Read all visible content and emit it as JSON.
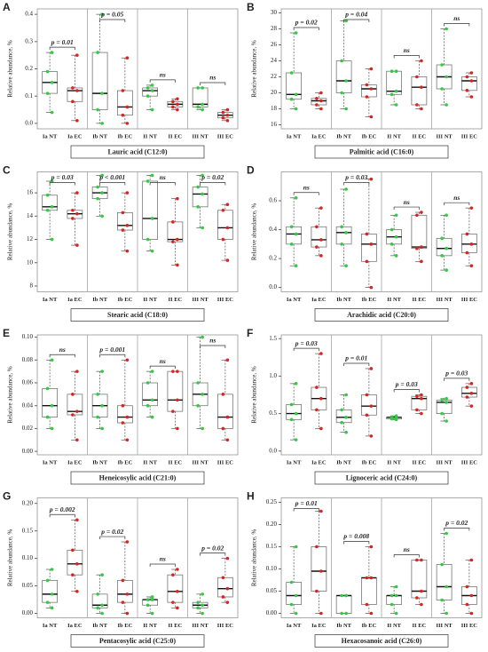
{
  "chart_data": [
    {
      "type": "box",
      "letter": "A",
      "title": "Lauric acid (C12:0)",
      "y_label": "Relative abundance, %",
      "categories": [
        "Ia NT",
        "Ia EC",
        "Ib NT",
        "Ib EC",
        "II NT",
        "II EC",
        "III NT",
        "III EC"
      ],
      "colors": [
        "#2ecc40",
        "#e0201e"
      ],
      "boxes": [
        {
          "min": 0.04,
          "q1": 0.11,
          "median": 0.15,
          "q3": 0.19,
          "max": 0.26
        },
        {
          "min": 0.01,
          "q1": 0.08,
          "median": 0.12,
          "q3": 0.13,
          "max": 0.25
        },
        {
          "min": 0.0,
          "q1": 0.05,
          "median": 0.11,
          "q3": 0.26,
          "max": 0.4
        },
        {
          "min": 0.0,
          "q1": 0.03,
          "median": 0.06,
          "q3": 0.12,
          "max": 0.24
        },
        {
          "min": 0.05,
          "q1": 0.1,
          "median": 0.12,
          "q3": 0.13,
          "max": 0.14
        },
        {
          "min": 0.05,
          "q1": 0.06,
          "median": 0.07,
          "q3": 0.08,
          "max": 0.09
        },
        {
          "min": 0.05,
          "q1": 0.06,
          "median": 0.07,
          "q3": 0.13,
          "max": 0.13
        },
        {
          "min": 0.01,
          "q1": 0.02,
          "median": 0.03,
          "q3": 0.04,
          "max": 0.05
        }
      ],
      "annotations": [
        "p = 0.01",
        "p = 0.05",
        "ns",
        "ns"
      ],
      "ylim": [
        -0.02,
        0.42
      ],
      "yticks": [
        {
          "value": 0,
          "label": "0.0"
        },
        0.1,
        0.2,
        0.3,
        0.4
      ]
    },
    {
      "type": "box",
      "letter": "B",
      "title": "Palmitic acid  (C16:0)",
      "y_label": "Relative abundance, %",
      "categories": [
        "Ia NT",
        "Ia EC",
        "Ib NT",
        "Ib EC",
        "II NT",
        "II EC",
        "III NT",
        "III EC"
      ],
      "colors": [
        "#2ecc40",
        "#e0201e"
      ],
      "boxes": [
        {
          "min": 18,
          "q1": 19.2,
          "median": 19.8,
          "q3": 22.5,
          "max": 27.5
        },
        {
          "min": 18,
          "q1": 18.5,
          "median": 19,
          "q3": 19.3,
          "max": 20
        },
        {
          "min": 18,
          "q1": 20,
          "median": 21.5,
          "q3": 24,
          "max": 29
        },
        {
          "min": 17,
          "q1": 19.5,
          "median": 20.5,
          "q3": 21,
          "max": 23
        },
        {
          "min": 18.5,
          "q1": 19.8,
          "median": 20.2,
          "q3": 22.7,
          "max": 22.7
        },
        {
          "min": 18,
          "q1": 18.5,
          "median": 20.7,
          "q3": 22,
          "max": 24
        },
        {
          "min": 18.5,
          "q1": 20.5,
          "median": 22,
          "q3": 23.5,
          "max": 28
        },
        {
          "min": 19.5,
          "q1": 20.3,
          "median": 21.5,
          "q3": 22,
          "max": 22.5
        }
      ],
      "annotations": [
        "p = 0.02",
        "p = 0.04",
        "ns",
        "ns"
      ],
      "ylim": [
        15.5,
        30.5
      ],
      "yticks": [
        16,
        18,
        20,
        22,
        24,
        26,
        28,
        30
      ]
    },
    {
      "type": "box",
      "letter": "C",
      "title": "Stearic acid (C18:0)",
      "y_label": "Relative abundance, %",
      "categories": [
        "Ia NT",
        "Ia EC",
        "Ib NT",
        "Ib EC",
        "II NT",
        "II EC",
        "III NT",
        "III EC"
      ],
      "colors": [
        "#2ecc40",
        "#e0201e"
      ],
      "boxes": [
        {
          "min": 12,
          "q1": 14.5,
          "median": 14.8,
          "q3": 15.8,
          "max": 17
        },
        {
          "min": 11.5,
          "q1": 13.8,
          "median": 14.2,
          "q3": 14.5,
          "max": 16
        },
        {
          "min": 14,
          "q1": 15.5,
          "median": 16,
          "q3": 16.5,
          "max": 17.5
        },
        {
          "min": 11,
          "q1": 12.8,
          "median": 13.2,
          "q3": 14.3,
          "max": 16
        },
        {
          "min": 11,
          "q1": 12,
          "median": 13.8,
          "q3": 17,
          "max": 17.5
        },
        {
          "min": 9.8,
          "q1": 11.8,
          "median": 12,
          "q3": 13.5,
          "max": 15.5
        },
        {
          "min": 13,
          "q1": 14.8,
          "median": 15.9,
          "q3": 16.5,
          "max": 17.5
        },
        {
          "min": 10.2,
          "q1": 12,
          "median": 13,
          "q3": 14.5,
          "max": 15
        }
      ],
      "annotations": [
        "p = 0.03",
        "p < 0.001",
        "ns",
        "p = 0.02"
      ],
      "ylim": [
        7.5,
        17.8
      ],
      "yticks": [
        8,
        10,
        12,
        14,
        16
      ]
    },
    {
      "type": "box",
      "letter": "D",
      "title": "Arachidic  acid (C20:0)",
      "y_label": "Relative abundance, %",
      "categories": [
        "Ia NT",
        "Ia EC",
        "Ib NT",
        "Ib EC",
        "II NT",
        "II EC",
        "III NT",
        "III EC"
      ],
      "colors": [
        "#2ecc40",
        "#e0201e"
      ],
      "boxes": [
        {
          "min": 0.15,
          "q1": 0.3,
          "median": 0.37,
          "q3": 0.42,
          "max": 0.62
        },
        {
          "min": 0.22,
          "q1": 0.28,
          "median": 0.33,
          "q3": 0.42,
          "max": 0.55
        },
        {
          "min": 0.15,
          "q1": 0.3,
          "median": 0.38,
          "q3": 0.42,
          "max": 0.68
        },
        {
          "min": 0.0,
          "q1": 0.18,
          "median": 0.3,
          "q3": 0.37,
          "max": 0.75
        },
        {
          "min": 0.22,
          "q1": 0.3,
          "median": 0.35,
          "q3": 0.4,
          "max": 0.5
        },
        {
          "min": 0.18,
          "q1": 0.27,
          "median": 0.28,
          "q3": 0.5,
          "max": 0.52
        },
        {
          "min": 0.12,
          "q1": 0.22,
          "median": 0.27,
          "q3": 0.34,
          "max": 0.5
        },
        {
          "min": 0.15,
          "q1": 0.24,
          "median": 0.3,
          "q3": 0.37,
          "max": 0.55
        }
      ],
      "annotations": [
        "ns",
        "p = 0.03",
        "ns",
        "ns"
      ],
      "ylim": [
        -0.03,
        0.8
      ],
      "yticks": [
        {
          "value": 0,
          "label": "0.0"
        },
        0.2,
        0.4,
        0.6
      ]
    },
    {
      "type": "box",
      "letter": "E",
      "title": "Heneicosylic acid (C21:0)",
      "y_label": "Relative abundance, %",
      "categories": [
        "Ia NT",
        "Ia EC",
        "Ib NT",
        "Ib EC",
        "II NT",
        "II EC",
        "III NT",
        "III EC"
      ],
      "colors": [
        "#2ecc40",
        "#e0201e"
      ],
      "boxes": [
        {
          "min": 0.02,
          "q1": 0.03,
          "median": 0.04,
          "q3": 0.055,
          "max": 0.08
        },
        {
          "min": 0.01,
          "q1": 0.032,
          "median": 0.035,
          "q3": 0.05,
          "max": 0.07
        },
        {
          "min": 0.02,
          "q1": 0.03,
          "median": 0.04,
          "q3": 0.05,
          "max": 0.07
        },
        {
          "min": 0.01,
          "q1": 0.025,
          "median": 0.03,
          "q3": 0.04,
          "max": 0.08
        },
        {
          "min": 0.03,
          "q1": 0.04,
          "median": 0.045,
          "q3": 0.06,
          "max": 0.07
        },
        {
          "min": 0.02,
          "q1": 0.035,
          "median": 0.045,
          "q3": 0.07,
          "max": 0.07
        },
        {
          "min": 0.02,
          "q1": 0.04,
          "median": 0.05,
          "q3": 0.06,
          "max": 0.1
        },
        {
          "min": 0.01,
          "q1": 0.02,
          "median": 0.03,
          "q3": 0.05,
          "max": 0.08
        }
      ],
      "annotations": [
        "ns",
        "p = 0.001",
        "ns",
        "ns"
      ],
      "ylim": [
        -0.003,
        0.102
      ],
      "yticks": [
        {
          "value": 0,
          "label": "0.00"
        },
        {
          "value": 0.02,
          "label": "0.02"
        },
        {
          "value": 0.04,
          "label": "0.04"
        },
        {
          "value": 0.06,
          "label": "0.06"
        },
        {
          "value": 0.08,
          "label": "0.08"
        },
        {
          "value": 0.1,
          "label": "0.10"
        }
      ]
    },
    {
      "type": "box",
      "letter": "F",
      "title": "Lignoceric acid (C24:0)",
      "y_label": "Relative abundance, %",
      "categories": [
        "Ia NT",
        "Ia EC",
        "Ib NT",
        "Ib EC",
        "II NT",
        "II EC",
        "III NT",
        "III EC"
      ],
      "colors": [
        "#2ecc40",
        "#e0201e"
      ],
      "boxes": [
        {
          "min": 0.15,
          "q1": 0.42,
          "median": 0.5,
          "q3": 0.62,
          "max": 0.9
        },
        {
          "min": 0.3,
          "q1": 0.55,
          "median": 0.7,
          "q3": 0.85,
          "max": 1.3
        },
        {
          "min": 0.25,
          "q1": 0.38,
          "median": 0.45,
          "q3": 0.55,
          "max": 0.75
        },
        {
          "min": 0.2,
          "q1": 0.48,
          "median": 0.6,
          "q3": 0.75,
          "max": 1.1
        },
        {
          "min": 0.42,
          "q1": 0.43,
          "median": 0.45,
          "q3": 0.45,
          "max": 0.47
        },
        {
          "min": 0.5,
          "q1": 0.55,
          "median": 0.7,
          "q3": 0.73,
          "max": 0.75
        },
        {
          "min": 0.4,
          "q1": 0.5,
          "median": 0.65,
          "q3": 0.68,
          "max": 0.7
        },
        {
          "min": 0.6,
          "q1": 0.72,
          "median": 0.77,
          "q3": 0.85,
          "max": 0.9
        }
      ],
      "annotations": [
        "p = 0.03",
        "p = 0.01",
        "p = 0.03",
        "p = 0.03"
      ],
      "ylim": [
        -0.05,
        1.55
      ],
      "yticks": [
        {
          "value": 0,
          "label": "0.0"
        },
        0.5,
        {
          "value": 1,
          "label": "1.0"
        },
        1.5
      ]
    },
    {
      "type": "box",
      "letter": "G",
      "title": "Pentacosylic acid (C25:0)",
      "y_label": "Relative abundance, %",
      "categories": [
        "Ia NT",
        "Ia EC",
        "Ib NT",
        "Ib EC",
        "II NT",
        "II EC",
        "III NT",
        "III EC"
      ],
      "colors": [
        "#2ecc40",
        "#e0201e"
      ],
      "boxes": [
        {
          "min": 0.01,
          "q1": 0.02,
          "median": 0.035,
          "q3": 0.06,
          "max": 0.08
        },
        {
          "min": 0.04,
          "q1": 0.07,
          "median": 0.09,
          "q3": 0.115,
          "max": 0.17
        },
        {
          "min": 0.0,
          "q1": 0.01,
          "median": 0.015,
          "q3": 0.035,
          "max": 0.07
        },
        {
          "min": 0.0,
          "q1": 0.02,
          "median": 0.035,
          "q3": 0.06,
          "max": 0.13
        },
        {
          "min": 0.0,
          "q1": 0.015,
          "median": 0.025,
          "q3": 0.025,
          "max": 0.03
        },
        {
          "min": 0.01,
          "q1": 0.02,
          "median": 0.04,
          "q3": 0.07,
          "max": 0.08
        },
        {
          "min": 0.0,
          "q1": 0.01,
          "median": 0.015,
          "q3": 0.02,
          "max": 0.035
        },
        {
          "min": 0.02,
          "q1": 0.03,
          "median": 0.045,
          "q3": 0.065,
          "max": 0.1
        }
      ],
      "annotations": [
        "p = 0.002",
        "p = 0.02",
        "ns",
        "p = 0.02"
      ],
      "ylim": [
        -0.008,
        0.21
      ],
      "yticks": [
        {
          "value": 0,
          "label": "0.00"
        },
        0.05,
        {
          "value": 0.1,
          "label": "0.10"
        },
        0.15,
        {
          "value": 0.2,
          "label": "0.20"
        }
      ]
    },
    {
      "type": "box",
      "letter": "H",
      "title": "Hexacosanoic acid (C26:0)",
      "y_label": "Relative abundance, %",
      "categories": [
        "Ia NT",
        "Ia EC",
        "Ib NT",
        "Ib EC",
        "II NT",
        "II EC",
        "III NT",
        "III EC"
      ],
      "colors": [
        "#2ecc40",
        "#e0201e"
      ],
      "boxes": [
        {
          "min": 0.0,
          "q1": 0.02,
          "median": 0.04,
          "q3": 0.07,
          "max": 0.15
        },
        {
          "min": 0.0,
          "q1": 0.05,
          "median": 0.095,
          "q3": 0.15,
          "max": 0.23
        },
        {
          "min": 0.0,
          "q1": 0.0,
          "median": 0.04,
          "q3": 0.04,
          "max": 0.04
        },
        {
          "min": 0.0,
          "q1": 0.02,
          "median": 0.08,
          "q3": 0.08,
          "max": 0.15
        },
        {
          "min": 0.0,
          "q1": 0.02,
          "median": 0.04,
          "q3": 0.04,
          "max": 0.06
        },
        {
          "min": 0.02,
          "q1": 0.035,
          "median": 0.05,
          "q3": 0.12,
          "max": 0.12
        },
        {
          "min": 0.0,
          "q1": 0.03,
          "median": 0.06,
          "q3": 0.11,
          "max": 0.18
        },
        {
          "min": 0.0,
          "q1": 0.02,
          "median": 0.04,
          "q3": 0.06,
          "max": 0.12
        }
      ],
      "annotations": [
        "p = 0.01",
        "p = 0.008",
        "ns",
        "p = 0.02"
      ],
      "ylim": [
        -0.01,
        0.26
      ],
      "yticks": [
        {
          "value": 0,
          "label": "0.00"
        },
        0.05,
        {
          "value": 0.1,
          "label": "0.10"
        },
        0.15,
        {
          "value": 0.2,
          "label": "0.20"
        },
        0.25
      ]
    }
  ]
}
